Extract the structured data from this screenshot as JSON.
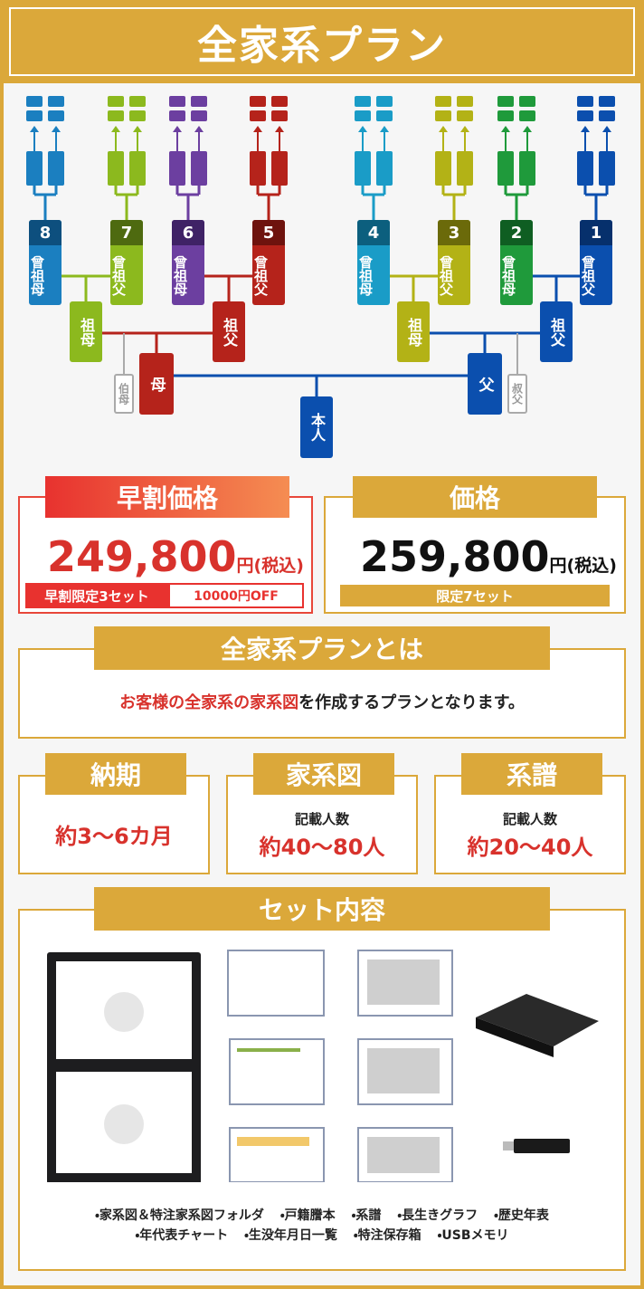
{
  "header": {
    "title": "全家系プラン"
  },
  "family_tree": {
    "great_grandparents": [
      {
        "number": "8",
        "label": "曾祖母"
      },
      {
        "number": "7",
        "label": "曾祖父"
      },
      {
        "number": "6",
        "label": "曾祖母"
      },
      {
        "number": "5",
        "label": "曾祖父"
      },
      {
        "number": "4",
        "label": "曾祖母"
      },
      {
        "number": "3",
        "label": "曾祖父"
      },
      {
        "number": "2",
        "label": "曾祖母"
      },
      {
        "number": "1",
        "label": "曾祖父"
      }
    ],
    "grandparents": [
      "祖母",
      "祖父",
      "祖母",
      "祖父"
    ],
    "parents": [
      "母",
      "父"
    ],
    "relatives": [
      "伯母",
      "叔父"
    ],
    "self": "本人"
  },
  "pricing": {
    "early": {
      "label": "早割価格",
      "price": "249,800",
      "unit": "円(税込)",
      "limit": "早割限定3セット",
      "discount": "10000円OFF"
    },
    "regular": {
      "label": "価格",
      "price": "259,800",
      "unit": "円(税込)",
      "limit": "限定7セット"
    }
  },
  "about": {
    "title": "全家系プランとは",
    "highlight": "お客様の全家系の家系図",
    "text": "を作成するプランとなります。"
  },
  "specs": [
    {
      "title": "納期",
      "value": "約3〜6カ月"
    },
    {
      "title": "家系図",
      "caption": "記載人数",
      "value": "約40〜80人"
    },
    {
      "title": "系譜",
      "caption": "記載人数",
      "value": "約20〜40人"
    }
  ],
  "set_contents": {
    "title": "セット内容",
    "items": [
      "・家系図＆特注家系図フォルダ",
      "・戸籍謄本",
      "・系譜",
      "・長生きグラフ",
      "・歴史年表",
      "・年代表チャート",
      "・生没年月日一覧",
      "・特注保存箱",
      "・USBメモリ"
    ]
  }
}
